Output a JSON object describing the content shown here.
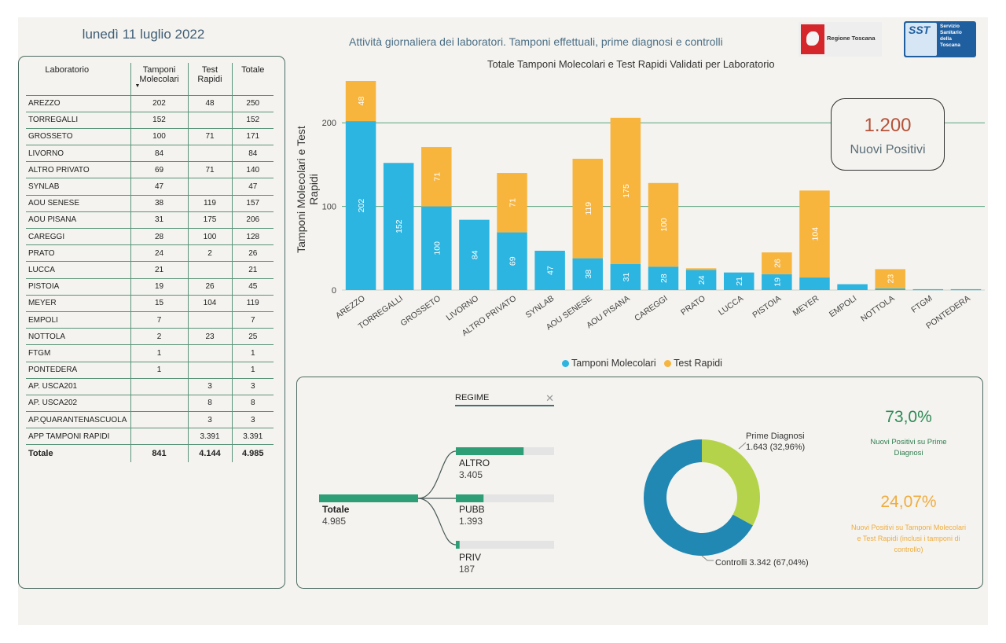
{
  "header": {
    "date": "lunedì 11 luglio 2022",
    "subtitle": "Attività giornaliera dei laboratori. Tamponi effettuali, prime diagnosi e controlli",
    "logo_rt_text": "Regione Toscana",
    "logo_sst_mark": "SST",
    "logo_sst_lines": [
      "Servizio",
      "Sanitario",
      "della",
      "Toscana"
    ]
  },
  "table": {
    "headers": {
      "lab": "Laboratorio",
      "mol_1": "Tamponi",
      "mol_2": "Molecolari",
      "rap_1": "Test",
      "rap_2": "Rapidi",
      "tot": "Totale"
    },
    "rows": [
      {
        "lab": "AREZZO",
        "mol": "202",
        "rap": "48",
        "tot": "250"
      },
      {
        "lab": "TORREGALLI",
        "mol": "152",
        "rap": "",
        "tot": "152"
      },
      {
        "lab": "GROSSETO",
        "mol": "100",
        "rap": "71",
        "tot": "171"
      },
      {
        "lab": "LIVORNO",
        "mol": "84",
        "rap": "",
        "tot": "84"
      },
      {
        "lab": "ALTRO PRIVATO",
        "mol": "69",
        "rap": "71",
        "tot": "140"
      },
      {
        "lab": "SYNLAB",
        "mol": "47",
        "rap": "",
        "tot": "47"
      },
      {
        "lab": "AOU SENESE",
        "mol": "38",
        "rap": "119",
        "tot": "157"
      },
      {
        "lab": "AOU PISANA",
        "mol": "31",
        "rap": "175",
        "tot": "206"
      },
      {
        "lab": "CAREGGI",
        "mol": "28",
        "rap": "100",
        "tot": "128"
      },
      {
        "lab": "PRATO",
        "mol": "24",
        "rap": "2",
        "tot": "26"
      },
      {
        "lab": "LUCCA",
        "mol": "21",
        "rap": "",
        "tot": "21"
      },
      {
        "lab": "PISTOIA",
        "mol": "19",
        "rap": "26",
        "tot": "45"
      },
      {
        "lab": "MEYER",
        "mol": "15",
        "rap": "104",
        "tot": "119"
      },
      {
        "lab": "EMPOLI",
        "mol": "7",
        "rap": "",
        "tot": "7"
      },
      {
        "lab": "NOTTOLA",
        "mol": "2",
        "rap": "23",
        "tot": "25"
      },
      {
        "lab": "FTGM",
        "mol": "1",
        "rap": "",
        "tot": "1"
      },
      {
        "lab": "PONTEDERA",
        "mol": "1",
        "rap": "",
        "tot": "1"
      },
      {
        "lab": "AP. USCA201",
        "mol": "",
        "rap": "3",
        "tot": "3"
      },
      {
        "lab": "AP. USCA202",
        "mol": "",
        "rap": "8",
        "tot": "8"
      },
      {
        "lab": "AP.QUARANTENASCUOLA",
        "mol": "",
        "rap": "3",
        "tot": "3"
      },
      {
        "lab": "APP TAMPONI RAPIDI",
        "mol": "",
        "rap": "3.391",
        "tot": "3.391"
      }
    ],
    "total": {
      "lab": "Totale",
      "mol": "841",
      "rap": "4.144",
      "tot": "4.985"
    }
  },
  "chart_data": {
    "type": "bar",
    "stacked": true,
    "title": "Totale Tamponi Molecolari e Test Rapidi Validati per Laboratorio",
    "ylabel": "Tamponi Molecolari e Test Rapidi",
    "xlabel": "",
    "ylim": [
      0,
      250
    ],
    "yticks": [
      0,
      100,
      200
    ],
    "grid": true,
    "legend_position": "bottom",
    "categories": [
      "AREZZO",
      "TORREGALLI",
      "GROSSETO",
      "LIVORNO",
      "ALTRO PRIVATO",
      "SYNLAB",
      "AOU SENESE",
      "AOU PISANA",
      "CAREGGI",
      "PRATO",
      "LUCCA",
      "PISTOIA",
      "MEYER",
      "EMPOLI",
      "NOTTOLA",
      "FTGM",
      "PONTEDERA"
    ],
    "series": [
      {
        "name": "Tamponi Molecolari",
        "color": "#2bb5e0",
        "values": [
          202,
          152,
          100,
          84,
          69,
          47,
          38,
          31,
          28,
          24,
          21,
          19,
          15,
          7,
          2,
          1,
          1
        ]
      },
      {
        "name": "Test Rapidi",
        "color": "#f7b53e",
        "values": [
          48,
          0,
          71,
          0,
          71,
          0,
          119,
          175,
          100,
          2,
          0,
          26,
          104,
          0,
          23,
          0,
          0
        ]
      }
    ]
  },
  "kpi": {
    "value": "1.200",
    "label": "Nuovi Positivi"
  },
  "regime": {
    "filter_label": "REGIME",
    "total_label": "Totale",
    "total_value": "4.985",
    "total": 4985,
    "branches": [
      {
        "label": "ALTRO",
        "value_text": "3.405",
        "value": 3405
      },
      {
        "label": "PUBB",
        "value_text": "1.393",
        "value": 1393
      },
      {
        "label": "PRIV",
        "value_text": "187",
        "value": 187
      }
    ],
    "bar_color": "#2e9e77"
  },
  "donut": {
    "slices": [
      {
        "name": "Prime Diagnosi",
        "value_text": "1.643 (32,96%)",
        "value": 1643,
        "color": "#b5d34a"
      },
      {
        "name": "Controlli",
        "value_text": "Controlli 3.342 (67,04%)",
        "value": 3342,
        "color": "#2187b3"
      }
    ]
  },
  "stats": {
    "pct1": "73,0%",
    "pct1_text": "Nuovi Positivi su Prime Diagnosi",
    "pct2": "24,07%",
    "pct2_text": "Nuovi Positivi su Tamponi Molecolari e Test Rapidi (inclusi i tamponi di controllo)"
  }
}
